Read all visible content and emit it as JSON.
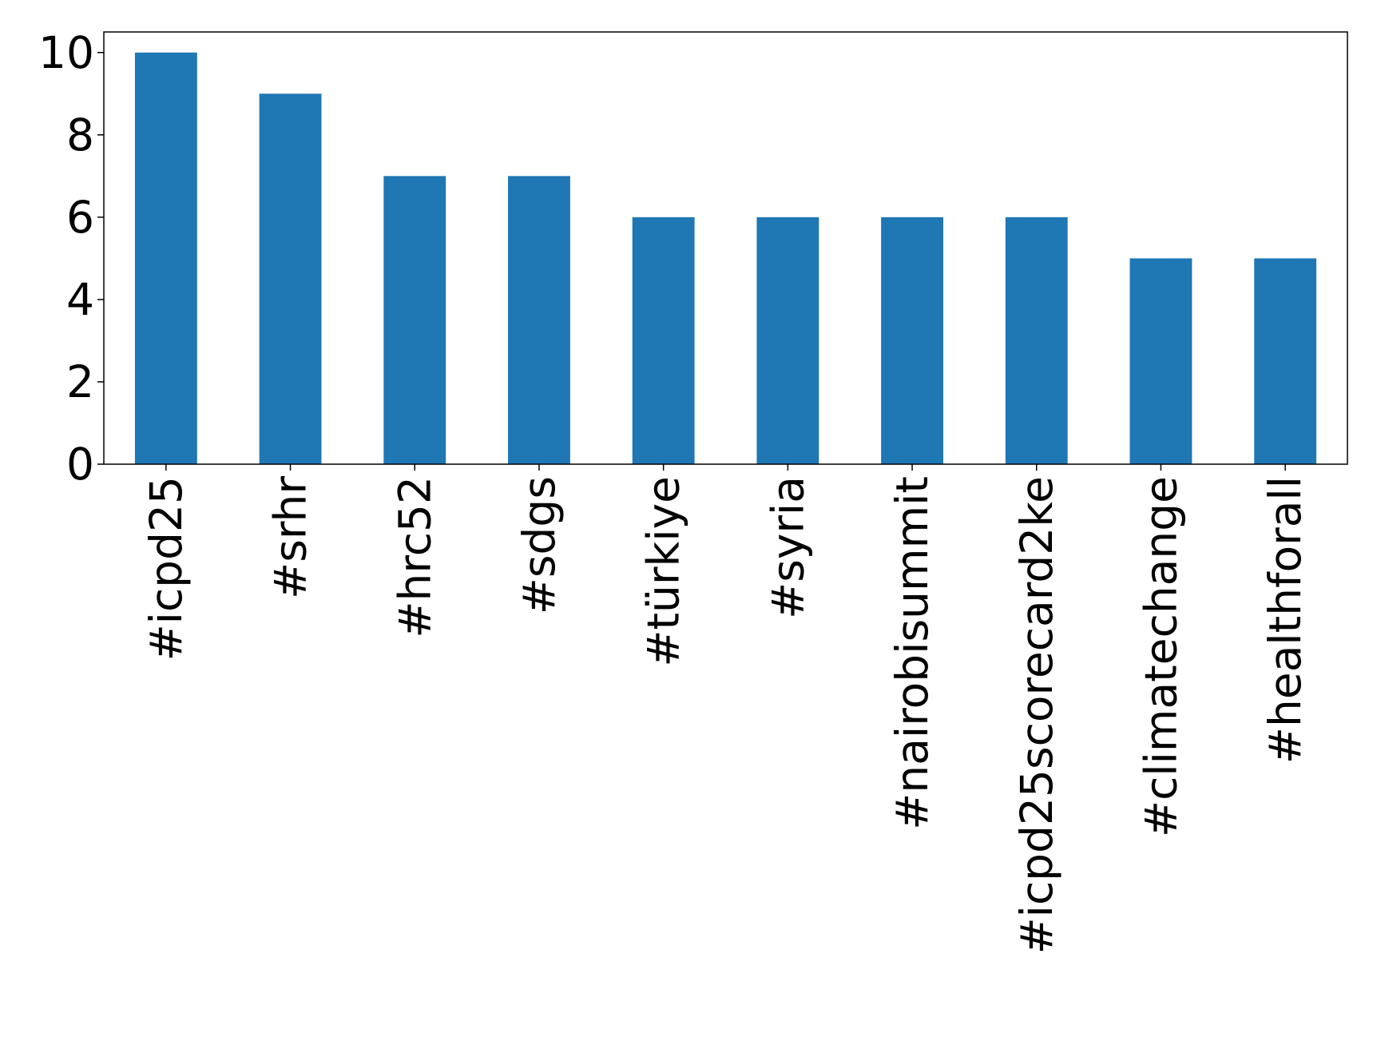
{
  "chart_data": {
    "type": "bar",
    "categories": [
      "#icpd25",
      "#srhr",
      "#hrc52",
      "#sdgs",
      "#türkiye",
      "#syria",
      "#nairobisummit",
      "#icpd25scorecard2ke",
      "#climatechange",
      "#healthforall"
    ],
    "values": [
      10,
      9,
      7,
      7,
      6,
      6,
      6,
      6,
      5,
      5
    ],
    "color": "#1f77b4",
    "ylim": [
      0,
      10.5
    ],
    "yticks": [
      0,
      2,
      4,
      6,
      8,
      10
    ],
    "grid": false
  }
}
